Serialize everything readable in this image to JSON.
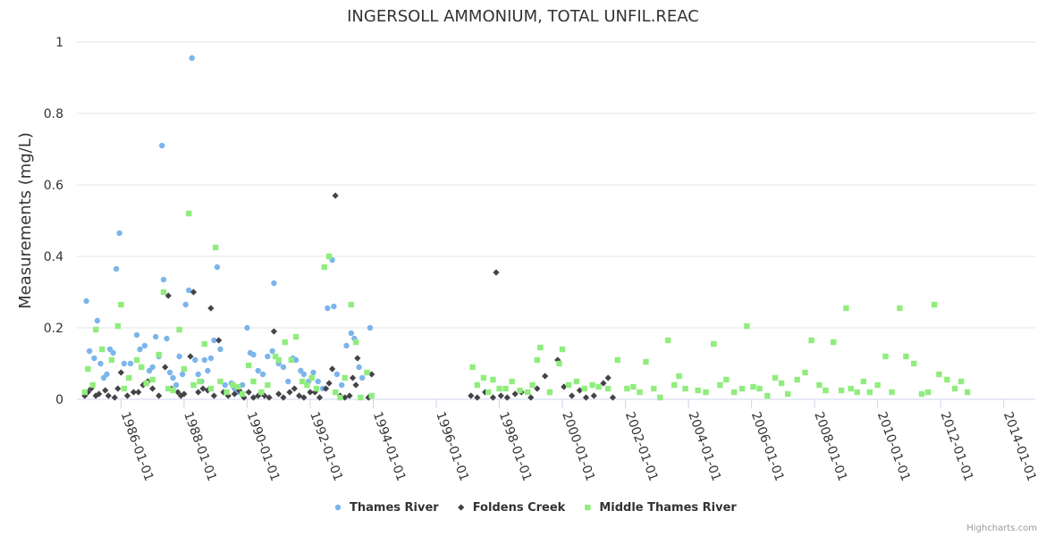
{
  "chart_data": {
    "type": "scatter",
    "title": "INGERSOLL AMMONIUM, TOTAL UNFIL.REAC",
    "ylabel": "Measurements (mg/L)",
    "xlabel": "",
    "ylim": [
      0,
      1
    ],
    "yticks": [
      0,
      0.2,
      0.4,
      0.6,
      0.8,
      1
    ],
    "ytick_labels": [
      "0",
      "0.2",
      "0.4",
      "0.6",
      "0.8",
      "1"
    ],
    "xlim": [
      1984.6,
      2015.0
    ],
    "xticks": [
      1986,
      1988,
      1990,
      1992,
      1994,
      1996,
      1998,
      2000,
      2002,
      2004,
      2006,
      2008,
      2010,
      2012,
      2014
    ],
    "xtick_labels": [
      "1986-01-01",
      "1988-01-01",
      "1990-01-01",
      "1992-01-01",
      "1994-01-01",
      "1996-01-01",
      "1998-01-01",
      "2000-01-01",
      "2002-01-01",
      "2004-01-01",
      "2006-01-01",
      "2008-01-01",
      "2010-01-01",
      "2012-01-01",
      "2014-01-01"
    ],
    "grid": true,
    "legend_position": "bottom-center",
    "series": [
      {
        "name": "Thames River",
        "color": "#7cb5ec",
        "marker": "circle",
        "points": [
          [
            1984.9,
            0.275
          ],
          [
            1985.0,
            0.135
          ],
          [
            1985.15,
            0.115
          ],
          [
            1985.25,
            0.22
          ],
          [
            1985.35,
            0.1
          ],
          [
            1985.45,
            0.06
          ],
          [
            1985.55,
            0.07
          ],
          [
            1985.65,
            0.14
          ],
          [
            1985.75,
            0.13
          ],
          [
            1985.85,
            0.365
          ],
          [
            1985.95,
            0.465
          ],
          [
            1986.1,
            0.1
          ],
          [
            1986.3,
            0.1
          ],
          [
            1986.5,
            0.18
          ],
          [
            1986.6,
            0.14
          ],
          [
            1986.75,
            0.15
          ],
          [
            1986.9,
            0.08
          ],
          [
            1987.0,
            0.09
          ],
          [
            1987.1,
            0.175
          ],
          [
            1987.2,
            0.12
          ],
          [
            1987.3,
            0.71
          ],
          [
            1987.35,
            0.335
          ],
          [
            1987.45,
            0.17
          ],
          [
            1987.55,
            0.075
          ],
          [
            1987.65,
            0.06
          ],
          [
            1987.75,
            0.04
          ],
          [
            1987.85,
            0.12
          ],
          [
            1987.95,
            0.07
          ],
          [
            1988.05,
            0.265
          ],
          [
            1988.15,
            0.305
          ],
          [
            1988.25,
            0.955
          ],
          [
            1988.35,
            0.11
          ],
          [
            1988.45,
            0.07
          ],
          [
            1988.55,
            0.05
          ],
          [
            1988.65,
            0.11
          ],
          [
            1988.75,
            0.08
          ],
          [
            1988.85,
            0.115
          ],
          [
            1988.95,
            0.165
          ],
          [
            1989.05,
            0.37
          ],
          [
            1989.15,
            0.14
          ],
          [
            1989.3,
            0.04
          ],
          [
            1989.5,
            0.045
          ],
          [
            1989.6,
            0.03
          ],
          [
            1989.7,
            0.02
          ],
          [
            1989.85,
            0.04
          ],
          [
            1990.0,
            0.2
          ],
          [
            1990.1,
            0.13
          ],
          [
            1990.2,
            0.125
          ],
          [
            1990.35,
            0.08
          ],
          [
            1990.5,
            0.07
          ],
          [
            1990.65,
            0.12
          ],
          [
            1990.8,
            0.135
          ],
          [
            1990.85,
            0.325
          ],
          [
            1991.0,
            0.1
          ],
          [
            1991.15,
            0.09
          ],
          [
            1991.3,
            0.05
          ],
          [
            1991.45,
            0.115
          ],
          [
            1991.55,
            0.11
          ],
          [
            1991.7,
            0.08
          ],
          [
            1991.8,
            0.07
          ],
          [
            1991.95,
            0.05
          ],
          [
            1992.1,
            0.075
          ],
          [
            1992.25,
            0.05
          ],
          [
            1992.4,
            0.03
          ],
          [
            1992.55,
            0.255
          ],
          [
            1992.7,
            0.39
          ],
          [
            1992.75,
            0.26
          ],
          [
            1992.85,
            0.07
          ],
          [
            1993.0,
            0.04
          ],
          [
            1993.15,
            0.15
          ],
          [
            1993.3,
            0.185
          ],
          [
            1993.4,
            0.17
          ],
          [
            1993.55,
            0.09
          ],
          [
            1993.65,
            0.06
          ],
          [
            1993.9,
            0.2
          ]
        ]
      },
      {
        "name": "Foldens Creek",
        "color": "#434348",
        "marker": "diamond",
        "points": [
          [
            1984.85,
            0.01
          ],
          [
            1984.95,
            0.02
          ],
          [
            1985.05,
            0.03
          ],
          [
            1985.2,
            0.01
          ],
          [
            1985.3,
            0.015
          ],
          [
            1985.5,
            0.025
          ],
          [
            1985.6,
            0.01
          ],
          [
            1985.8,
            0.005
          ],
          [
            1985.9,
            0.03
          ],
          [
            1986.0,
            0.075
          ],
          [
            1986.2,
            0.01
          ],
          [
            1986.4,
            0.02
          ],
          [
            1986.55,
            0.02
          ],
          [
            1986.7,
            0.04
          ],
          [
            1986.85,
            0.05
          ],
          [
            1987.0,
            0.03
          ],
          [
            1987.2,
            0.01
          ],
          [
            1987.4,
            0.09
          ],
          [
            1987.5,
            0.29
          ],
          [
            1987.6,
            0.03
          ],
          [
            1987.8,
            0.02
          ],
          [
            1987.9,
            0.01
          ],
          [
            1988.0,
            0.015
          ],
          [
            1988.2,
            0.12
          ],
          [
            1988.3,
            0.3
          ],
          [
            1988.45,
            0.02
          ],
          [
            1988.6,
            0.03
          ],
          [
            1988.75,
            0.025
          ],
          [
            1988.85,
            0.255
          ],
          [
            1988.95,
            0.01
          ],
          [
            1989.1,
            0.165
          ],
          [
            1989.25,
            0.02
          ],
          [
            1989.4,
            0.01
          ],
          [
            1989.6,
            0.015
          ],
          [
            1989.75,
            0.025
          ],
          [
            1989.9,
            0.005
          ],
          [
            1990.05,
            0.02
          ],
          [
            1990.2,
            0.005
          ],
          [
            1990.35,
            0.01
          ],
          [
            1990.55,
            0.01
          ],
          [
            1990.7,
            0.005
          ],
          [
            1990.85,
            0.19
          ],
          [
            1991.0,
            0.015
          ],
          [
            1991.15,
            0.005
          ],
          [
            1991.35,
            0.02
          ],
          [
            1991.5,
            0.03
          ],
          [
            1991.65,
            0.01
          ],
          [
            1991.8,
            0.005
          ],
          [
            1992.0,
            0.02
          ],
          [
            1992.15,
            0.02
          ],
          [
            1992.3,
            0.005
          ],
          [
            1992.5,
            0.03
          ],
          [
            1992.6,
            0.045
          ],
          [
            1992.7,
            0.085
          ],
          [
            1992.8,
            0.57
          ],
          [
            1992.95,
            0.01
          ],
          [
            1993.1,
            0.005
          ],
          [
            1993.25,
            0.01
          ],
          [
            1993.35,
            0.06
          ],
          [
            1993.45,
            0.04
          ],
          [
            1993.5,
            0.115
          ],
          [
            1993.85,
            0.005
          ],
          [
            1993.95,
            0.07
          ],
          [
            1997.1,
            0.01
          ],
          [
            1997.3,
            0.005
          ],
          [
            1997.55,
            0.02
          ],
          [
            1997.8,
            0.005
          ],
          [
            1997.9,
            0.355
          ],
          [
            1998.05,
            0.01
          ],
          [
            1998.25,
            0.005
          ],
          [
            1998.5,
            0.015
          ],
          [
            1998.7,
            0.02
          ],
          [
            1999.0,
            0.005
          ],
          [
            1999.2,
            0.03
          ],
          [
            1999.45,
            0.065
          ],
          [
            1999.6,
            0.02
          ],
          [
            1999.85,
            0.11
          ],
          [
            2000.05,
            0.035
          ],
          [
            2000.3,
            0.01
          ],
          [
            2000.55,
            0.025
          ],
          [
            2000.75,
            0.005
          ],
          [
            2001.0,
            0.01
          ],
          [
            2001.3,
            0.045
          ],
          [
            2001.45,
            0.06
          ],
          [
            2001.6,
            0.005
          ]
        ]
      },
      {
        "name": "Middle Thames River",
        "color": "#90ed7d",
        "marker": "square",
        "points": [
          [
            1984.85,
            0.02
          ],
          [
            1984.95,
            0.085
          ],
          [
            1985.1,
            0.04
          ],
          [
            1985.2,
            0.195
          ],
          [
            1985.4,
            0.14
          ],
          [
            1985.7,
            0.11
          ],
          [
            1985.9,
            0.205
          ],
          [
            1986.0,
            0.265
          ],
          [
            1986.1,
            0.03
          ],
          [
            1986.25,
            0.06
          ],
          [
            1986.5,
            0.11
          ],
          [
            1986.65,
            0.09
          ],
          [
            1986.8,
            0.045
          ],
          [
            1987.0,
            0.055
          ],
          [
            1987.2,
            0.125
          ],
          [
            1987.35,
            0.3
          ],
          [
            1987.5,
            0.03
          ],
          [
            1987.65,
            0.025
          ],
          [
            1987.85,
            0.195
          ],
          [
            1988.0,
            0.085
          ],
          [
            1988.15,
            0.52
          ],
          [
            1988.3,
            0.04
          ],
          [
            1988.5,
            0.05
          ],
          [
            1988.65,
            0.155
          ],
          [
            1988.85,
            0.03
          ],
          [
            1989.0,
            0.425
          ],
          [
            1989.15,
            0.05
          ],
          [
            1989.35,
            0.02
          ],
          [
            1989.55,
            0.04
          ],
          [
            1989.7,
            0.035
          ],
          [
            1989.85,
            0.015
          ],
          [
            1990.05,
            0.095
          ],
          [
            1990.2,
            0.05
          ],
          [
            1990.45,
            0.02
          ],
          [
            1990.65,
            0.04
          ],
          [
            1990.9,
            0.12
          ],
          [
            1991.0,
            0.11
          ],
          [
            1991.2,
            0.16
          ],
          [
            1991.4,
            0.11
          ],
          [
            1991.55,
            0.175
          ],
          [
            1991.75,
            0.05
          ],
          [
            1991.9,
            0.04
          ],
          [
            1992.05,
            0.06
          ],
          [
            1992.2,
            0.03
          ],
          [
            1992.45,
            0.37
          ],
          [
            1992.6,
            0.4
          ],
          [
            1992.8,
            0.02
          ],
          [
            1992.95,
            0.005
          ],
          [
            1993.1,
            0.06
          ],
          [
            1993.3,
            0.265
          ],
          [
            1993.45,
            0.16
          ],
          [
            1993.6,
            0.005
          ],
          [
            1993.8,
            0.075
          ],
          [
            1993.95,
            0.01
          ],
          [
            1997.15,
            0.09
          ],
          [
            1997.3,
            0.04
          ],
          [
            1997.5,
            0.06
          ],
          [
            1997.65,
            0.02
          ],
          [
            1997.8,
            0.055
          ],
          [
            1998.0,
            0.03
          ],
          [
            1998.2,
            0.03
          ],
          [
            1998.4,
            0.05
          ],
          [
            1998.65,
            0.025
          ],
          [
            1998.9,
            0.02
          ],
          [
            1999.05,
            0.04
          ],
          [
            1999.2,
            0.11
          ],
          [
            1999.3,
            0.145
          ],
          [
            1999.6,
            0.02
          ],
          [
            1999.9,
            0.1
          ],
          [
            2000.0,
            0.14
          ],
          [
            2000.2,
            0.04
          ],
          [
            2000.45,
            0.05
          ],
          [
            2000.7,
            0.03
          ],
          [
            2000.95,
            0.04
          ],
          [
            2001.15,
            0.035
          ],
          [
            2001.45,
            0.03
          ],
          [
            2001.75,
            0.11
          ],
          [
            2002.05,
            0.03
          ],
          [
            2002.25,
            0.035
          ],
          [
            2002.45,
            0.02
          ],
          [
            2002.65,
            0.105
          ],
          [
            2002.9,
            0.03
          ],
          [
            2003.1,
            0.005
          ],
          [
            2003.35,
            0.165
          ],
          [
            2003.55,
            0.04
          ],
          [
            2003.7,
            0.065
          ],
          [
            2003.9,
            0.03
          ],
          [
            2004.3,
            0.025
          ],
          [
            2004.55,
            0.02
          ],
          [
            2004.8,
            0.155
          ],
          [
            2005.0,
            0.04
          ],
          [
            2005.2,
            0.055
          ],
          [
            2005.45,
            0.02
          ],
          [
            2005.7,
            0.03
          ],
          [
            2005.85,
            0.205
          ],
          [
            2006.05,
            0.035
          ],
          [
            2006.25,
            0.03
          ],
          [
            2006.5,
            0.01
          ],
          [
            2006.75,
            0.06
          ],
          [
            2006.95,
            0.045
          ],
          [
            2007.15,
            0.015
          ],
          [
            2007.45,
            0.055
          ],
          [
            2007.7,
            0.075
          ],
          [
            2007.9,
            0.165
          ],
          [
            2008.15,
            0.04
          ],
          [
            2008.35,
            0.025
          ],
          [
            2008.6,
            0.16
          ],
          [
            2008.85,
            0.025
          ],
          [
            2009.0,
            0.255
          ],
          [
            2009.15,
            0.03
          ],
          [
            2009.35,
            0.02
          ],
          [
            2009.55,
            0.05
          ],
          [
            2009.75,
            0.02
          ],
          [
            2010.0,
            0.04
          ],
          [
            2010.25,
            0.12
          ],
          [
            2010.45,
            0.02
          ],
          [
            2010.7,
            0.255
          ],
          [
            2010.9,
            0.12
          ],
          [
            2011.15,
            0.1
          ],
          [
            2011.4,
            0.015
          ],
          [
            2011.6,
            0.02
          ],
          [
            2011.8,
            0.265
          ],
          [
            2011.95,
            0.07
          ],
          [
            2012.2,
            0.055
          ],
          [
            2012.45,
            0.03
          ],
          [
            2012.65,
            0.05
          ],
          [
            2012.85,
            0.02
          ]
        ]
      }
    ]
  },
  "credits": "Highcharts.com"
}
